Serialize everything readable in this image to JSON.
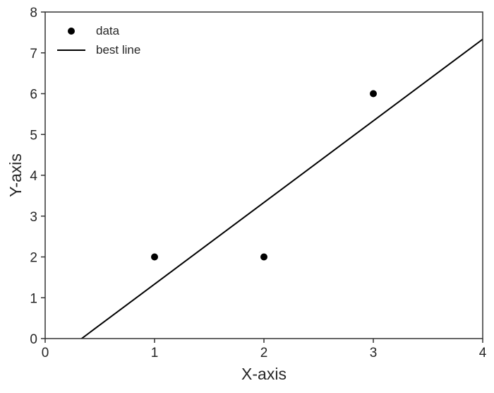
{
  "chart_data": {
    "type": "scatter",
    "title": "",
    "xlabel": "X-axis",
    "ylabel": "Y-axis",
    "xlim": [
      0,
      4
    ],
    "ylim": [
      0,
      8
    ],
    "xticks": [
      "0",
      "1",
      "2",
      "3",
      "4"
    ],
    "yticks": [
      "0",
      "1",
      "2",
      "3",
      "4",
      "5",
      "6",
      "7",
      "8"
    ],
    "grid": false,
    "legend_position": "top-left",
    "series": [
      {
        "name": "data",
        "kind": "scatter",
        "color": "#000000",
        "x": [
          1,
          2,
          3
        ],
        "y": [
          2,
          2,
          6
        ]
      },
      {
        "name": "best line",
        "kind": "line",
        "color": "#000000",
        "slope": 2,
        "intercept": -0.6667,
        "x_range": [
          0,
          4
        ]
      }
    ]
  }
}
